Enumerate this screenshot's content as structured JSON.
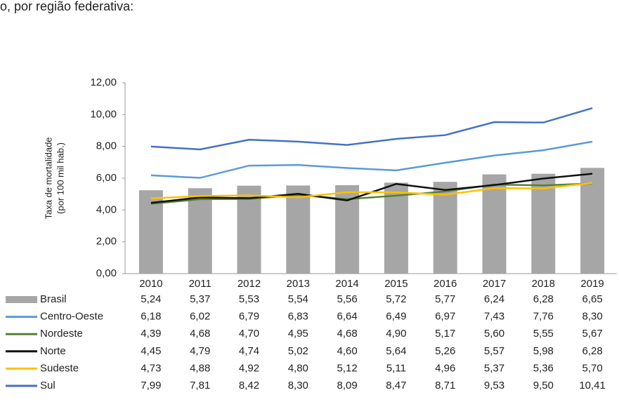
{
  "heading": "o, por região federativa:",
  "chart_data": {
    "type": "combo",
    "ylabel": [
      "Taxa de mortalidade",
      "(por 100 mil hab.)"
    ],
    "categories": [
      "2010",
      "2011",
      "2012",
      "2013",
      "2014",
      "2015",
      "2016",
      "2017",
      "2018",
      "2019"
    ],
    "ylim": [
      0,
      12
    ],
    "yticks": [
      {
        "value": 0,
        "label": "0,00"
      },
      {
        "value": 2,
        "label": "2,00"
      },
      {
        "value": 4,
        "label": "4,00"
      },
      {
        "value": 6,
        "label": "6,00"
      },
      {
        "value": 8,
        "label": "8,00"
      },
      {
        "value": 10,
        "label": "10,00"
      },
      {
        "value": 12,
        "label": "12,00"
      }
    ],
    "series": [
      {
        "name": "Brasil",
        "type": "bar",
        "color": "#a6a6a6",
        "values": [
          5.24,
          5.37,
          5.53,
          5.54,
          5.56,
          5.72,
          5.77,
          6.24,
          6.28,
          6.65
        ],
        "value_labels": [
          "5,24",
          "5,37",
          "5,53",
          "5,54",
          "5,56",
          "5,72",
          "5,77",
          "6,24",
          "6,28",
          "6,65"
        ]
      },
      {
        "name": "Centro-Oeste",
        "type": "line",
        "color": "#5b9bd5",
        "values": [
          6.18,
          6.02,
          6.79,
          6.83,
          6.64,
          6.49,
          6.97,
          7.43,
          7.76,
          8.3
        ],
        "value_labels": [
          "6,18",
          "6,02",
          "6,79",
          "6,83",
          "6,64",
          "6,49",
          "6,97",
          "7,43",
          "7,76",
          "8,30"
        ]
      },
      {
        "name": "Nordeste",
        "type": "line",
        "color": "#548235",
        "values": [
          4.39,
          4.68,
          4.7,
          4.95,
          4.68,
          4.9,
          5.17,
          5.6,
          5.55,
          5.67
        ],
        "value_labels": [
          "4,39",
          "4,68",
          "4,70",
          "4,95",
          "4,68",
          "4,90",
          "5,17",
          "5,60",
          "5,55",
          "5,67"
        ]
      },
      {
        "name": "Norte",
        "type": "line",
        "color": "#111111",
        "values": [
          4.45,
          4.79,
          4.74,
          5.02,
          4.6,
          5.64,
          5.26,
          5.57,
          5.98,
          6.28
        ],
        "value_labels": [
          "4,45",
          "4,79",
          "4,74",
          "5,02",
          "4,60",
          "5,64",
          "5,26",
          "5,57",
          "5,98",
          "6,28"
        ]
      },
      {
        "name": "Sudeste",
        "type": "line",
        "color": "#ffc000",
        "values": [
          4.73,
          4.88,
          4.92,
          4.8,
          5.12,
          5.11,
          4.96,
          5.37,
          5.36,
          5.7
        ],
        "value_labels": [
          "4,73",
          "4,88",
          "4,92",
          "4,80",
          "5,12",
          "5,11",
          "4,96",
          "5,37",
          "5,36",
          "5,70"
        ]
      },
      {
        "name": "Sul",
        "type": "line",
        "color": "#4472c4",
        "values": [
          7.99,
          7.81,
          8.42,
          8.3,
          8.09,
          8.47,
          8.71,
          9.53,
          9.5,
          10.41
        ],
        "value_labels": [
          "7,99",
          "7,81",
          "8,42",
          "8,30",
          "8,09",
          "8,47",
          "8,71",
          "9,53",
          "9,50",
          "10,41"
        ]
      }
    ]
  }
}
